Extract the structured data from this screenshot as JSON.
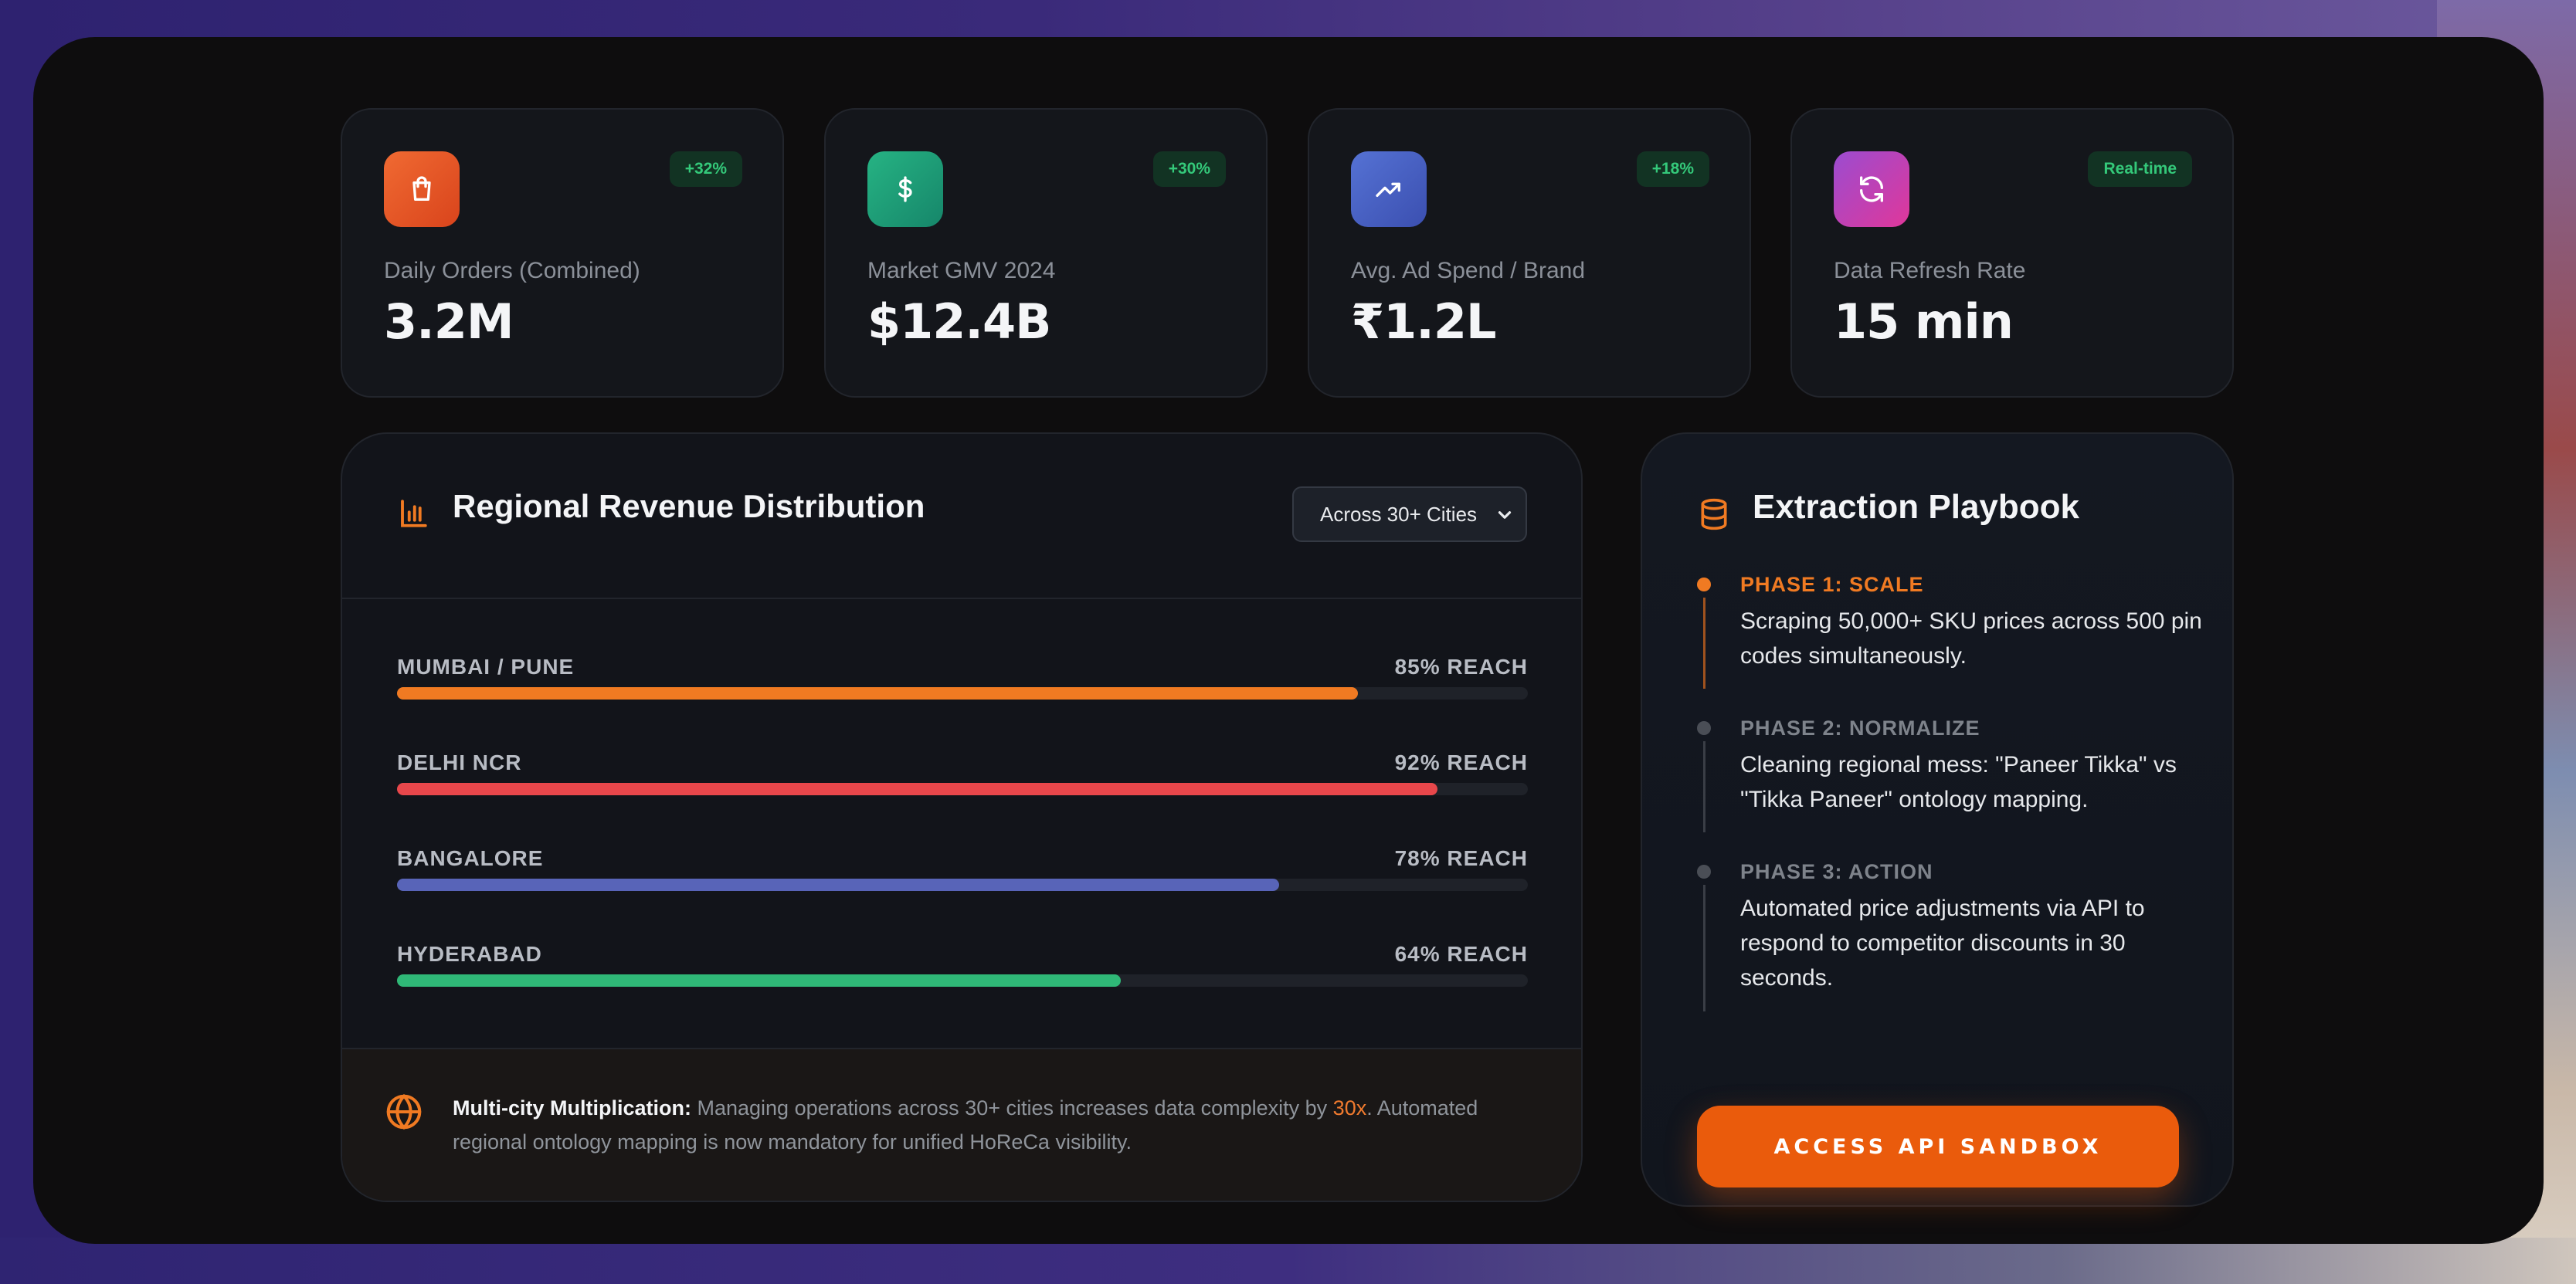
{
  "stats": [
    {
      "label": "Daily Orders (Combined)",
      "value": "3.2M",
      "badge": "+32%",
      "icon": "shopping-bag-icon",
      "color": "#f05a28"
    },
    {
      "label": "Market GMV 2024",
      "value": "$12.4B",
      "badge": "+30%",
      "icon": "dollar-icon",
      "color": "#1fa37a"
    },
    {
      "label": "Avg. Ad Spend / Brand",
      "value": "₹1.2L",
      "badge": "+18%",
      "icon": "trending-up-icon",
      "color": "#4a64c8"
    },
    {
      "label": "Data Refresh Rate",
      "value": "15 min",
      "badge": "Real-time",
      "icon": "refresh-icon",
      "color": "#c23fa8"
    }
  ],
  "region": {
    "title": "Regional Revenue Distribution",
    "select_value": "Across 30+ Cities",
    "rows": [
      {
        "name": "MUMBAI / PUNE",
        "reach_label": "85% REACH",
        "reach": 0.85,
        "color": "#f07a22"
      },
      {
        "name": "DELHI NCR",
        "reach_label": "92% REACH",
        "reach": 0.92,
        "color": "#e8474b"
      },
      {
        "name": "BANGALORE",
        "reach_label": "78% REACH",
        "reach": 0.78,
        "color": "#5864b8"
      },
      {
        "name": "HYDERABAD",
        "reach_label": "64% REACH",
        "reach": 0.64,
        "color": "#2fb877"
      }
    ],
    "footer": {
      "strong": "Multi-city Multiplication:",
      "text_before": " Managing operations across 30+ cities increases data complexity by ",
      "highlight": "30x",
      "text_after": ". Automated regional ontology mapping is now mandatory for unified HoReCa visibility."
    }
  },
  "playbook": {
    "title": "Extraction Playbook",
    "phases": [
      {
        "title": "PHASE 1: SCALE",
        "text": "Scraping 50,000+ SKU prices across 500 pin codes simultaneously.",
        "active": true
      },
      {
        "title": "PHASE 2: NORMALIZE",
        "text": "Cleaning regional mess: \"Paneer Tikka\" vs \"Tikka Paneer\" ontology mapping.",
        "active": false
      },
      {
        "title": "PHASE 3: ACTION",
        "text": "Automated price adjustments via API to respond to competitor discounts in 30 seconds.",
        "active": false
      }
    ],
    "button_label": "ACCESS API SANDBOX"
  },
  "colors": {
    "accent": "#ea5b0c",
    "badge_text": "#34c97a",
    "inactive_phase": "#7e838b"
  }
}
